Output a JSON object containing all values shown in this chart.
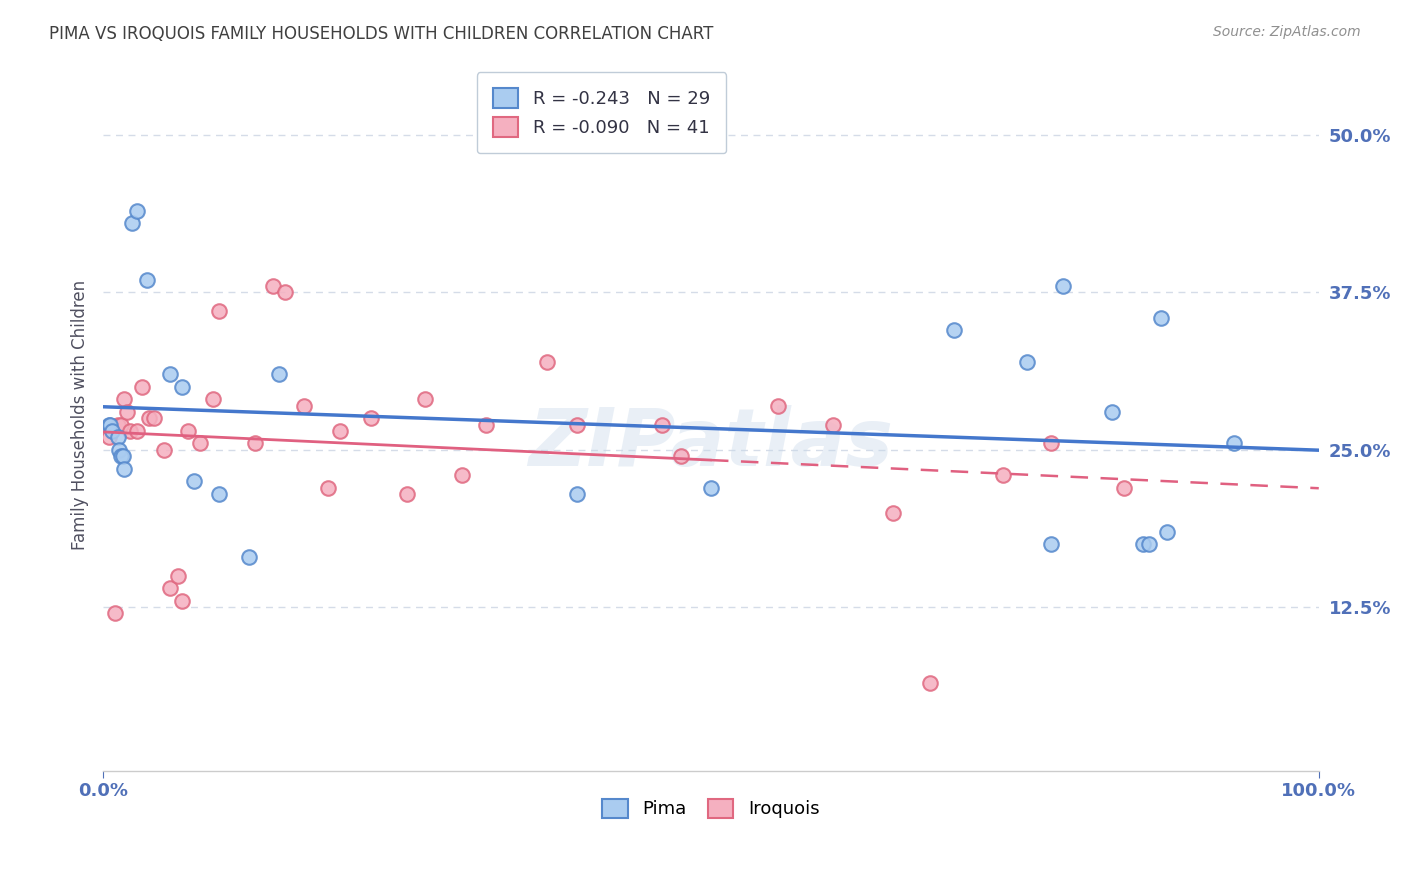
{
  "title": "PIMA VS IROQUOIS FAMILY HOUSEHOLDS WITH CHILDREN CORRELATION CHART",
  "source": "Source: ZipAtlas.com",
  "ylabel": "Family Households with Children",
  "watermark": "ZIPatlas",
  "pima_color": "#aaccf0",
  "iroquois_color": "#f5b0c0",
  "pima_edge_color": "#5588cc",
  "iroquois_edge_color": "#e06880",
  "pima_line_color": "#4477cc",
  "iroquois_line_color": "#e06080",
  "pima_R": -0.243,
  "pima_N": 29,
  "iroquois_R": -0.09,
  "iroquois_N": 41,
  "xlim": [
    0.0,
    1.0
  ],
  "ylim": [
    -0.005,
    0.56
  ],
  "ytick_vals": [
    0.125,
    0.25,
    0.375,
    0.5
  ],
  "ytick_labels": [
    "12.5%",
    "25.0%",
    "37.5%",
    "50.0%"
  ],
  "pima_x": [
    0.005,
    0.006,
    0.007,
    0.012,
    0.013,
    0.015,
    0.016,
    0.017,
    0.024,
    0.028,
    0.036,
    0.055,
    0.065,
    0.075,
    0.095,
    0.12,
    0.145,
    0.39,
    0.5,
    0.7,
    0.76,
    0.78,
    0.79,
    0.83,
    0.855,
    0.86,
    0.87,
    0.875,
    0.93
  ],
  "pima_y": [
    0.27,
    0.27,
    0.265,
    0.26,
    0.25,
    0.245,
    0.245,
    0.235,
    0.43,
    0.44,
    0.385,
    0.31,
    0.3,
    0.225,
    0.215,
    0.165,
    0.31,
    0.215,
    0.22,
    0.345,
    0.32,
    0.175,
    0.38,
    0.28,
    0.175,
    0.175,
    0.355,
    0.185,
    0.255
  ],
  "iroquois_x": [
    0.005,
    0.01,
    0.012,
    0.015,
    0.017,
    0.02,
    0.022,
    0.028,
    0.032,
    0.038,
    0.042,
    0.05,
    0.055,
    0.062,
    0.065,
    0.07,
    0.08,
    0.09,
    0.095,
    0.125,
    0.14,
    0.15,
    0.165,
    0.185,
    0.195,
    0.22,
    0.25,
    0.265,
    0.295,
    0.315,
    0.365,
    0.39,
    0.46,
    0.475,
    0.555,
    0.6,
    0.65,
    0.68,
    0.74,
    0.78,
    0.84
  ],
  "iroquois_y": [
    0.26,
    0.12,
    0.27,
    0.27,
    0.29,
    0.28,
    0.265,
    0.265,
    0.3,
    0.275,
    0.275,
    0.25,
    0.14,
    0.15,
    0.13,
    0.265,
    0.255,
    0.29,
    0.36,
    0.255,
    0.38,
    0.375,
    0.285,
    0.22,
    0.265,
    0.275,
    0.215,
    0.29,
    0.23,
    0.27,
    0.32,
    0.27,
    0.27,
    0.245,
    0.285,
    0.27,
    0.2,
    0.065,
    0.23,
    0.255,
    0.22
  ],
  "marker_size": 110,
  "bg_color": "#ffffff",
  "grid_color": "#d5dce8",
  "title_color": "#404040",
  "source_color": "#909090",
  "ylabel_color": "#505060",
  "tick_color": "#5070b8"
}
